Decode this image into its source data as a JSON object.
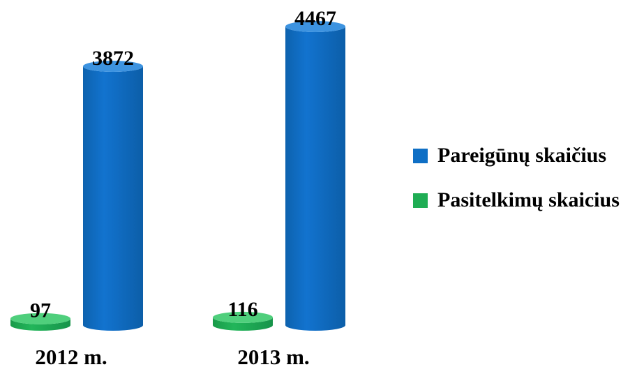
{
  "chart_data": {
    "type": "bar",
    "style": "3d-cylinder",
    "categories": [
      "2012 m.",
      "2013 m."
    ],
    "series": [
      {
        "name": "Pasitelkimų skaicius",
        "color": "#1fad54",
        "values": [
          97,
          116
        ]
      },
      {
        "name": "Pareigūnų skaičius",
        "color": "#0f6fc5",
        "values": [
          3872,
          4467
        ]
      }
    ],
    "ylim": [
      0,
      4467
    ],
    "grid": false,
    "legend_position": "right",
    "legend_order": [
      1,
      0
    ]
  }
}
